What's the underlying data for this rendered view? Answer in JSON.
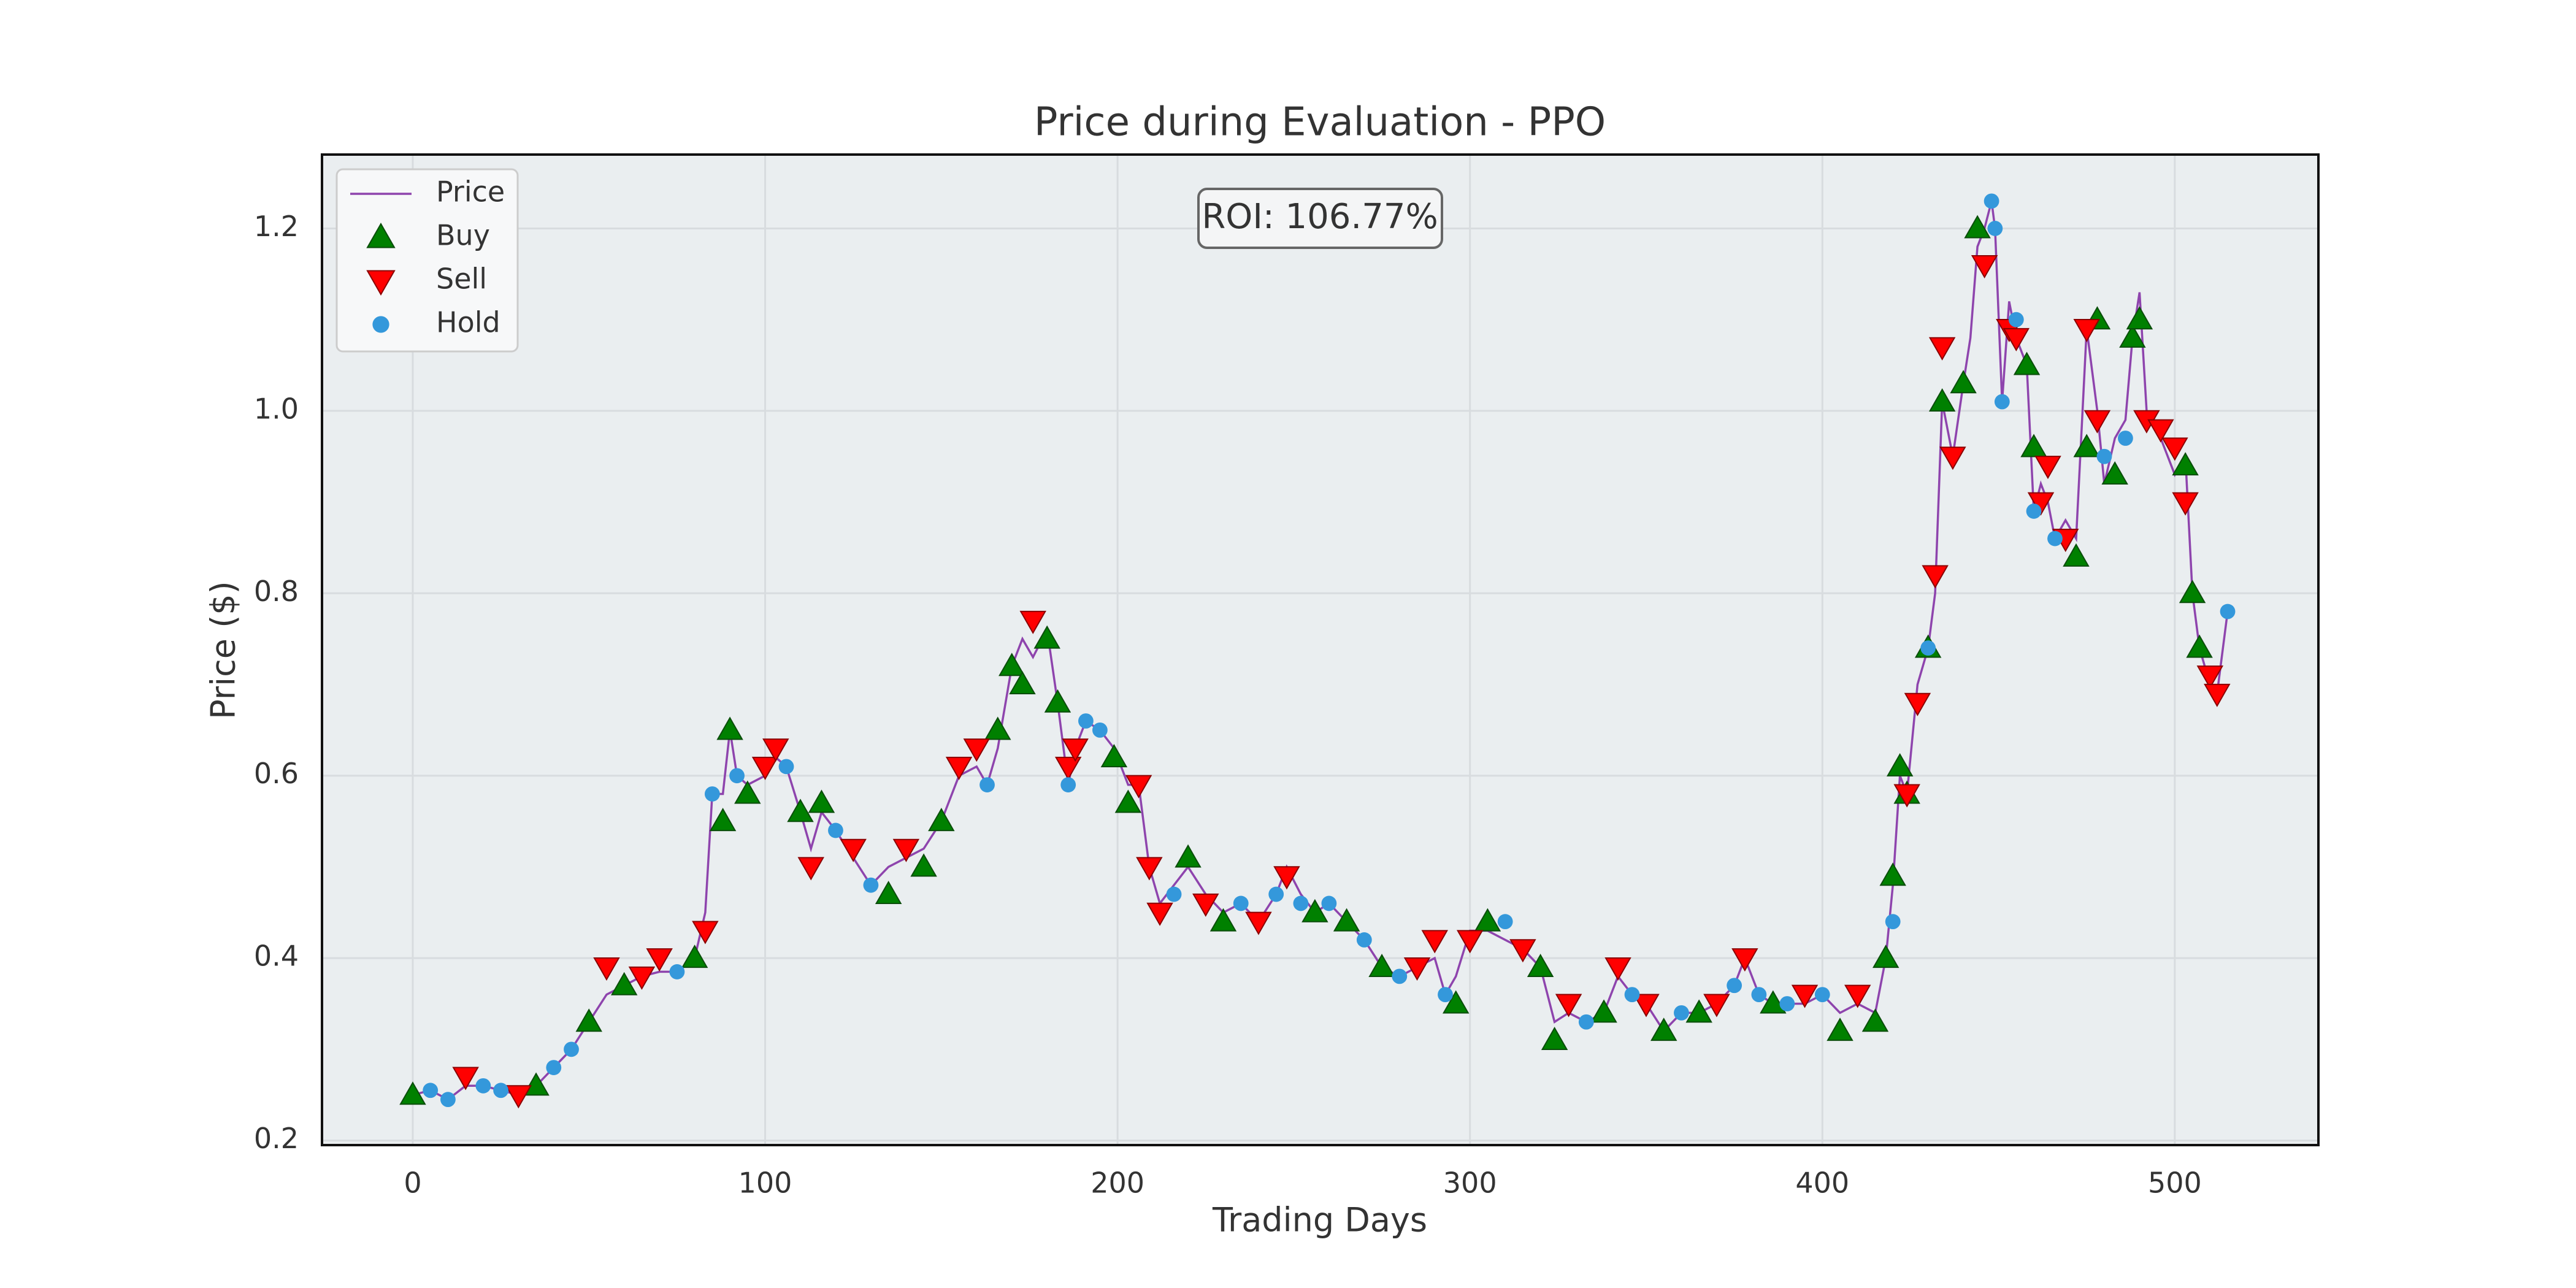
{
  "chart_data": {
    "type": "line",
    "title": "Price during Evaluation - PPO",
    "xlabel": "Trading Days",
    "ylabel": "Price ($)",
    "annotation": "ROI: 106.77%",
    "xlim": [
      -25.75,
      540.75
    ],
    "ylim": [
      0.195,
      1.281
    ],
    "xticks": [
      0,
      100,
      200,
      300,
      400,
      500
    ],
    "yticks": [
      {
        "value": 0.2,
        "label": "0.2"
      },
      {
        "value": 0.4,
        "label": "0.4"
      },
      {
        "value": 0.6,
        "label": "0.6"
      },
      {
        "value": 0.8,
        "label": "0.8"
      },
      {
        "value": 1.0,
        "label": "1.0"
      },
      {
        "value": 1.2,
        "label": "1.2"
      }
    ],
    "grid": true,
    "legend": "upper left",
    "series": [
      {
        "name": "Price",
        "color": "#8e44ad",
        "marker": "line",
        "x": [
          0,
          5,
          10,
          15,
          20,
          25,
          30,
          35,
          40,
          45,
          50,
          55,
          60,
          65,
          70,
          75,
          80,
          83,
          85,
          88,
          90,
          92,
          95,
          100,
          103,
          106,
          110,
          113,
          116,
          120,
          125,
          130,
          135,
          140,
          145,
          150,
          155,
          160,
          163,
          166,
          170,
          173,
          176,
          180,
          183,
          186,
          188,
          191,
          195,
          199,
          203,
          206,
          209,
          212,
          216,
          220,
          225,
          230,
          235,
          240,
          245,
          248,
          252,
          256,
          260,
          265,
          270,
          275,
          280,
          285,
          290,
          293,
          296,
          300,
          305,
          310,
          315,
          320,
          324,
          328,
          333,
          338,
          342,
          346,
          350,
          355,
          360,
          365,
          370,
          375,
          378,
          382,
          386,
          390,
          395,
          400,
          405,
          410,
          415,
          418,
          420,
          422,
          424,
          427,
          430,
          432,
          434,
          437,
          440,
          442,
          444,
          446,
          448,
          449,
          451,
          453,
          455,
          458,
          460,
          462,
          464,
          466,
          469,
          472,
          475,
          478,
          480,
          483,
          486,
          488,
          490,
          492,
          496,
          500,
          503,
          505,
          507,
          510,
          512,
          515
        ],
        "values": [
          0.25,
          0.255,
          0.245,
          0.26,
          0.26,
          0.255,
          0.25,
          0.26,
          0.28,
          0.3,
          0.33,
          0.36,
          0.37,
          0.38,
          0.385,
          0.385,
          0.4,
          0.45,
          0.58,
          0.58,
          0.65,
          0.6,
          0.59,
          0.6,
          0.62,
          0.61,
          0.56,
          0.52,
          0.56,
          0.54,
          0.51,
          0.48,
          0.5,
          0.51,
          0.52,
          0.55,
          0.6,
          0.61,
          0.59,
          0.63,
          0.72,
          0.75,
          0.73,
          0.76,
          0.68,
          0.59,
          0.63,
          0.66,
          0.65,
          0.63,
          0.59,
          0.59,
          0.5,
          0.46,
          0.48,
          0.5,
          0.47,
          0.45,
          0.46,
          0.44,
          0.47,
          0.5,
          0.47,
          0.45,
          0.46,
          0.44,
          0.42,
          0.39,
          0.38,
          0.39,
          0.4,
          0.36,
          0.38,
          0.43,
          0.43,
          0.42,
          0.41,
          0.39,
          0.33,
          0.34,
          0.33,
          0.34,
          0.38,
          0.36,
          0.35,
          0.32,
          0.34,
          0.34,
          0.35,
          0.37,
          0.4,
          0.36,
          0.35,
          0.35,
          0.35,
          0.36,
          0.34,
          0.35,
          0.34,
          0.4,
          0.48,
          0.6,
          0.58,
          0.7,
          0.74,
          0.8,
          1.01,
          0.95,
          1.03,
          1.08,
          1.18,
          1.2,
          1.23,
          1.2,
          1.01,
          1.12,
          1.08,
          1.05,
          0.89,
          0.92,
          0.9,
          0.86,
          0.88,
          0.86,
          1.09,
          1.0,
          0.92,
          0.97,
          0.99,
          1.08,
          1.13,
          1.0,
          0.97,
          0.93,
          0.95,
          0.8,
          0.74,
          0.7,
          0.69,
          0.78
        ]
      },
      {
        "name": "Buy",
        "color": "#008000",
        "marker": "up",
        "x": [
          0,
          35,
          50,
          60,
          80,
          88,
          90,
          95,
          110,
          116,
          135,
          145,
          150,
          166,
          170,
          173,
          180,
          183,
          199,
          203,
          220,
          230,
          256,
          265,
          275,
          296,
          305,
          320,
          324,
          338,
          355,
          365,
          386,
          405,
          415,
          418,
          420,
          422,
          424,
          430,
          434,
          440,
          444,
          458,
          460,
          472,
          475,
          478,
          483,
          488,
          490,
          503,
          505,
          507
        ],
        "values": [
          0.25,
          0.26,
          0.33,
          0.37,
          0.4,
          0.55,
          0.65,
          0.58,
          0.56,
          0.57,
          0.47,
          0.5,
          0.55,
          0.65,
          0.72,
          0.7,
          0.75,
          0.68,
          0.62,
          0.57,
          0.51,
          0.44,
          0.45,
          0.44,
          0.39,
          0.35,
          0.44,
          0.39,
          0.31,
          0.34,
          0.32,
          0.34,
          0.35,
          0.32,
          0.33,
          0.4,
          0.49,
          0.61,
          0.58,
          0.74,
          1.01,
          1.03,
          1.2,
          1.05,
          0.96,
          0.84,
          0.96,
          1.1,
          0.93,
          1.08,
          1.1,
          0.94,
          0.8,
          0.74
        ]
      },
      {
        "name": "Sell",
        "color": "#ff0000",
        "marker": "down",
        "x": [
          15,
          30,
          55,
          65,
          70,
          83,
          100,
          103,
          113,
          125,
          140,
          155,
          160,
          176,
          186,
          188,
          206,
          209,
          212,
          225,
          240,
          248,
          285,
          290,
          300,
          315,
          328,
          342,
          350,
          370,
          378,
          395,
          410,
          424,
          427,
          432,
          434,
          437,
          446,
          453,
          455,
          462,
          464,
          469,
          475,
          478,
          492,
          496,
          500,
          503,
          510,
          512
        ],
        "values": [
          0.27,
          0.25,
          0.39,
          0.38,
          0.4,
          0.43,
          0.61,
          0.63,
          0.5,
          0.52,
          0.52,
          0.61,
          0.63,
          0.77,
          0.61,
          0.63,
          0.59,
          0.5,
          0.45,
          0.46,
          0.44,
          0.49,
          0.39,
          0.42,
          0.42,
          0.41,
          0.35,
          0.39,
          0.35,
          0.35,
          0.4,
          0.36,
          0.36,
          0.58,
          0.68,
          0.82,
          1.07,
          0.95,
          1.16,
          1.09,
          1.08,
          0.9,
          0.94,
          0.86,
          1.09,
          0.99,
          0.99,
          0.98,
          0.96,
          0.9,
          0.71,
          0.69
        ]
      },
      {
        "name": "Hold",
        "color": "#3498db",
        "marker": "dot",
        "x": [
          5,
          10,
          20,
          25,
          40,
          45,
          75,
          85,
          92,
          106,
          120,
          130,
          163,
          186,
          191,
          195,
          216,
          235,
          245,
          252,
          260,
          270,
          280,
          293,
          310,
          333,
          346,
          360,
          375,
          382,
          390,
          400,
          420,
          430,
          448,
          449,
          451,
          455,
          460,
          466,
          480,
          486,
          515
        ],
        "values": [
          0.255,
          0.245,
          0.26,
          0.255,
          0.28,
          0.3,
          0.385,
          0.58,
          0.6,
          0.61,
          0.54,
          0.48,
          0.59,
          0.59,
          0.66,
          0.65,
          0.47,
          0.46,
          0.47,
          0.46,
          0.46,
          0.42,
          0.38,
          0.36,
          0.44,
          0.33,
          0.36,
          0.34,
          0.37,
          0.36,
          0.35,
          0.36,
          0.44,
          0.74,
          1.23,
          1.2,
          1.01,
          1.1,
          0.89,
          0.86,
          0.95,
          0.97,
          0.78
        ]
      }
    ]
  }
}
